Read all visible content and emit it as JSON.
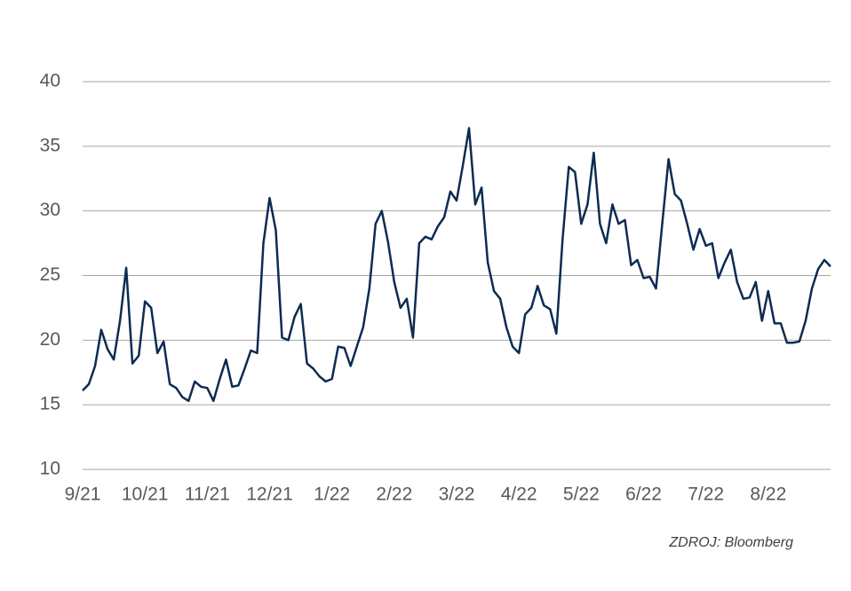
{
  "chart_data": {
    "type": "line",
    "source": "ZDROJ: Bloomberg",
    "categories": [
      "9/21",
      null,
      null,
      null,
      null,
      null,
      null,
      null,
      null,
      null,
      "10/21",
      null,
      null,
      null,
      null,
      null,
      null,
      null,
      null,
      null,
      "11/21",
      null,
      null,
      null,
      null,
      null,
      null,
      null,
      null,
      null,
      "12/21",
      null,
      null,
      null,
      null,
      null,
      null,
      null,
      null,
      null,
      "1/22",
      null,
      null,
      null,
      null,
      null,
      null,
      null,
      null,
      null,
      "2/22",
      null,
      null,
      null,
      null,
      null,
      null,
      null,
      null,
      null,
      "3/22",
      null,
      null,
      null,
      null,
      null,
      null,
      null,
      null,
      null,
      "4/22",
      null,
      null,
      null,
      null,
      null,
      null,
      null,
      null,
      null,
      "5/22",
      null,
      null,
      null,
      null,
      null,
      null,
      null,
      null,
      null,
      "6/22",
      null,
      null,
      null,
      null,
      null,
      null,
      null,
      null,
      null,
      "7/22",
      null,
      null,
      null,
      null,
      null,
      null,
      null,
      null,
      null,
      "8/22",
      null,
      null,
      null,
      null,
      null,
      null,
      null,
      null,
      null,
      null
    ],
    "series": [
      {
        "name": null,
        "color": "#0d2b52",
        "values": [
          16.1,
          16.6,
          18,
          20.8,
          19.3,
          18.5,
          21.5,
          25.6,
          18.2,
          18.8,
          23,
          22.5,
          19,
          19.9,
          16.6,
          16.3,
          15.6,
          15.3,
          16.8,
          16.4,
          16.3,
          15.3,
          17,
          18.5,
          16.4,
          16.5,
          17.8,
          19.2,
          19,
          27.5,
          31,
          28.5,
          20.2,
          20,
          21.8,
          22.8,
          18.2,
          17.8,
          17.2,
          16.8,
          17,
          19.5,
          19.4,
          18,
          19.5,
          21,
          24,
          29,
          30,
          27.6,
          24.5,
          22.5,
          23.2,
          20.2,
          27.5,
          28,
          27.8,
          28.8,
          29.5,
          31.5,
          30.8,
          33.5,
          36.4,
          30.5,
          31.8,
          26,
          23.8,
          23.2,
          21,
          19.5,
          19,
          22,
          22.5,
          24.2,
          22.7,
          22.4,
          20.5,
          27.8,
          33.4,
          33,
          29,
          30.5,
          34.5,
          29,
          27.5,
          30.5,
          29,
          29.3,
          25.8,
          26.2,
          24.8,
          24.9,
          24,
          29,
          34,
          31.3,
          30.8,
          29,
          27,
          28.6,
          27.3,
          27.5,
          24.8,
          26,
          27,
          24.5,
          23.2,
          23.3,
          24.5,
          21.5,
          23.8,
          21.3,
          21.3,
          19.8,
          19.8,
          19.9,
          21.5,
          24,
          25.5,
          26.2,
          25.7
        ]
      }
    ],
    "ylim": [
      10,
      40
    ],
    "yticks": [
      10,
      15,
      20,
      25,
      30,
      35,
      40
    ],
    "grid": true
  }
}
